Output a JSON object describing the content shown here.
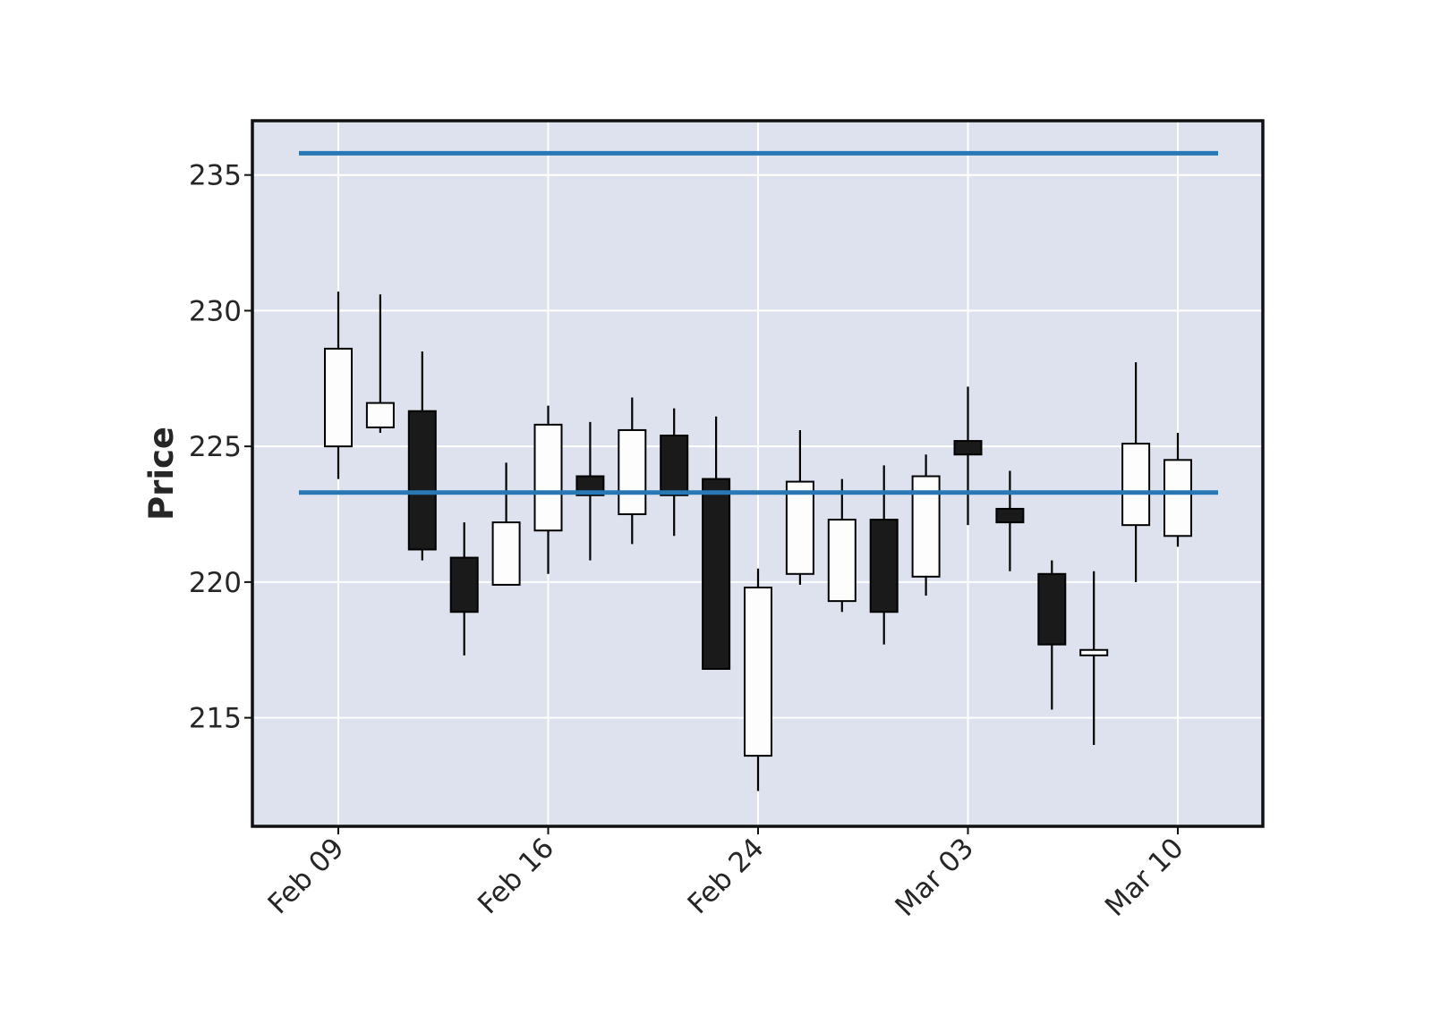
{
  "chart_data": {
    "type": "candlestick",
    "title": "",
    "xlabel": "",
    "ylabel": "Price",
    "ylim": [
      211,
      237
    ],
    "yticks": [
      215,
      220,
      225,
      230,
      235
    ],
    "xtick_labels": [
      {
        "date": "2021-02-09",
        "label": "Feb 09"
      },
      {
        "date": "2021-02-16",
        "label": "Feb 16"
      },
      {
        "date": "2021-02-24",
        "label": "Feb 24"
      },
      {
        "date": "2021-03-03",
        "label": "Mar 03"
      },
      {
        "date": "2021-03-10",
        "label": "Mar 10"
      }
    ],
    "grid": true,
    "background_color": "#dde2ee",
    "up_color": "#fdfdfd",
    "down_color": "#1a1a1a",
    "hline_color": "#2878b5",
    "hlines": [
      235.8,
      223.3
    ],
    "candles": [
      {
        "date": "2021-02-09",
        "open": 225.0,
        "high": 230.7,
        "low": 223.8,
        "close": 228.6
      },
      {
        "date": "2021-02-10",
        "open": 225.7,
        "high": 230.6,
        "low": 225.5,
        "close": 226.6
      },
      {
        "date": "2021-02-11",
        "open": 226.3,
        "high": 228.5,
        "low": 220.8,
        "close": 221.2
      },
      {
        "date": "2021-02-12",
        "open": 220.9,
        "high": 222.2,
        "low": 217.3,
        "close": 218.9
      },
      {
        "date": "2021-02-15",
        "open": 219.9,
        "high": 224.4,
        "low": 219.9,
        "close": 222.2
      },
      {
        "date": "2021-02-16",
        "open": 221.9,
        "high": 226.5,
        "low": 220.3,
        "close": 225.8
      },
      {
        "date": "2021-02-17",
        "open": 223.9,
        "high": 225.9,
        "low": 220.8,
        "close": 223.2
      },
      {
        "date": "2021-02-18",
        "open": 222.5,
        "high": 226.8,
        "low": 221.4,
        "close": 225.6
      },
      {
        "date": "2021-02-19",
        "open": 225.4,
        "high": 226.4,
        "low": 221.7,
        "close": 223.2
      },
      {
        "date": "2021-02-22",
        "open": 223.8,
        "high": 226.1,
        "low": 216.8,
        "close": 216.8
      },
      {
        "date": "2021-02-24",
        "open": 213.6,
        "high": 220.5,
        "low": 212.3,
        "close": 219.8
      },
      {
        "date": "2021-02-25",
        "open": 220.3,
        "high": 225.6,
        "low": 219.9,
        "close": 223.7
      },
      {
        "date": "2021-02-26",
        "open": 219.3,
        "high": 223.8,
        "low": 218.9,
        "close": 222.3
      },
      {
        "date": "2021-03-01",
        "open": 222.3,
        "high": 224.3,
        "low": 217.7,
        "close": 218.9
      },
      {
        "date": "2021-03-02",
        "open": 220.2,
        "high": 224.7,
        "low": 219.5,
        "close": 223.9
      },
      {
        "date": "2021-03-03",
        "open": 225.2,
        "high": 227.2,
        "low": 222.1,
        "close": 224.7
      },
      {
        "date": "2021-03-04",
        "open": 222.7,
        "high": 224.1,
        "low": 220.4,
        "close": 222.2
      },
      {
        "date": "2021-03-05",
        "open": 220.3,
        "high": 220.8,
        "low": 215.3,
        "close": 217.7
      },
      {
        "date": "2021-03-08",
        "open": 217.3,
        "high": 220.4,
        "low": 214.0,
        "close": 217.5
      },
      {
        "date": "2021-03-09",
        "open": 222.1,
        "high": 228.1,
        "low": 220.0,
        "close": 225.1
      },
      {
        "date": "2021-03-10",
        "open": 221.7,
        "high": 225.5,
        "low": 221.3,
        "close": 224.5
      }
    ]
  }
}
